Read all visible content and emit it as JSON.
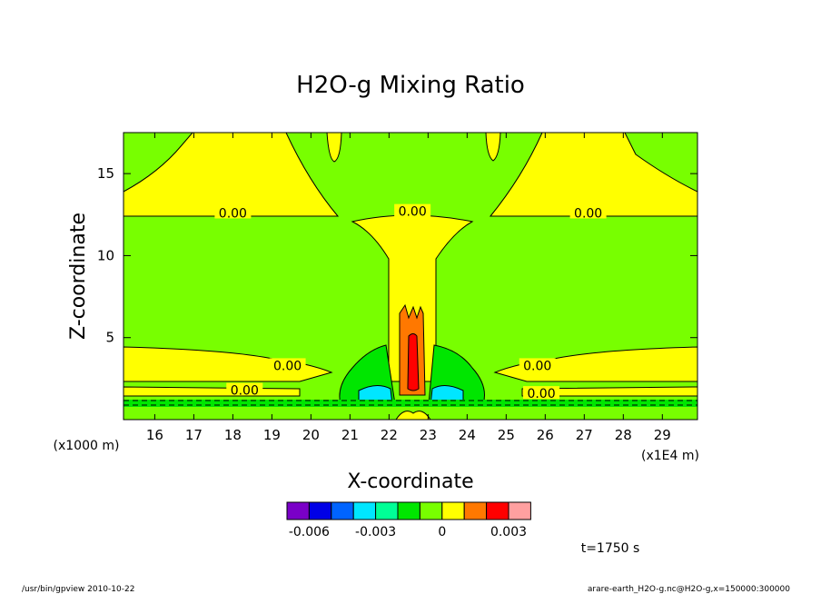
{
  "chart_data": {
    "type": "contour",
    "title": "H2O-g Mixing Ratio",
    "xlabel": "X-coordinate",
    "ylabel": "Z-coordinate",
    "x_unit": "(x1E4 m)",
    "y_unit": "(x1000 m)",
    "xlim": [
      15.2,
      29.9
    ],
    "ylim": [
      0.0,
      17.5
    ],
    "x_ticks": [
      16,
      17,
      18,
      19,
      20,
      21,
      22,
      23,
      24,
      25,
      26,
      27,
      28,
      29
    ],
    "y_ticks": [
      5,
      10,
      15
    ],
    "contour_labels": [
      {
        "text": "0.00",
        "x": 18.0,
        "z": 12.6
      },
      {
        "text": "0.00",
        "x": 22.6,
        "z": 12.7
      },
      {
        "text": "0.00",
        "x": 27.1,
        "z": 12.6
      },
      {
        "text": "0.00",
        "x": 19.4,
        "z": 3.3
      },
      {
        "text": "0.00",
        "x": 25.8,
        "z": 3.3
      },
      {
        "text": "0.00",
        "x": 18.3,
        "z": 1.8
      },
      {
        "text": "0.00",
        "x": 25.9,
        "z": 1.6
      }
    ],
    "colorbar": {
      "levels": [
        -0.006,
        -0.005,
        -0.004,
        -0.003,
        -0.002,
        -0.001,
        0,
        0.001,
        0.002,
        0.003
      ],
      "tick_labels": [
        "-0.006",
        "-0.003",
        "0",
        "0.003"
      ],
      "colors": [
        "#7a00c8",
        "#0000e6",
        "#0064ff",
        "#00e6ff",
        "#00ff96",
        "#00e600",
        "#78ff00",
        "#ffff00",
        "#ff7800",
        "#ff0000",
        "#ffa0a0"
      ]
    },
    "time_label": "t=1750 s"
  },
  "footer": {
    "left": "/usr/bin/gpview  2010-10-22",
    "right": "arare-earth_H2O-g.nc@H2O-g,x=150000:300000"
  }
}
